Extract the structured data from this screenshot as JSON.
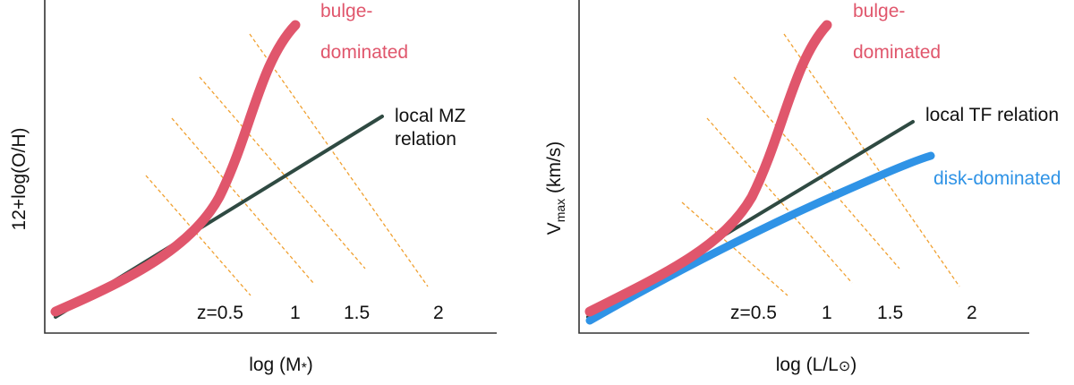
{
  "left_panel": {
    "y_label": "12+log(O/H)",
    "x_label_prefix": "log (M",
    "x_label_symbol": "*",
    "x_label_suffix": ")",
    "bulge_label_line1": "bulge-",
    "bulge_label_line2": "dominated",
    "local_label_line1": "local MZ",
    "local_label_line2": "relation",
    "z_labels": [
      "z=0.5",
      "1",
      "1.5",
      "2"
    ]
  },
  "right_panel": {
    "y_label_main": "V",
    "y_label_sub": "max",
    "y_label_unit": " (km/s)",
    "x_label_prefix": "log (L/L",
    "x_label_symbol": "⊙",
    "x_label_suffix": ")",
    "bulge_label_line1": "bulge-",
    "bulge_label_line2": "dominated",
    "local_label": "local TF relation",
    "disk_label": "disk-dominated",
    "z_labels": [
      "z=0.5",
      "1",
      "1.5",
      "2"
    ]
  },
  "colors": {
    "bulge": "#e0566c",
    "disk": "#2f93e6",
    "local": "#2f4a42",
    "redshift_track": "#f0a030",
    "axis": "#333333"
  }
}
